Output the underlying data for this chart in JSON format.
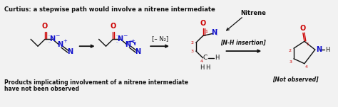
{
  "title": "Curtius: a stepwise path would involve a nitrene intermediate",
  "bottom_text1": "Products implicating involvement of a nitrene intermediate",
  "bottom_text2": "have not been observed",
  "nitrene_label": "Nitrene",
  "minus_n2": "[– N₂]",
  "nh_insertion": "[N-H insertion]",
  "not_observed": "[Not observed]",
  "bg_color": "#f2f2f2",
  "title_color": "#000000",
  "red_color": "#cc0000",
  "blue_color": "#1111cc",
  "black_color": "#111111"
}
